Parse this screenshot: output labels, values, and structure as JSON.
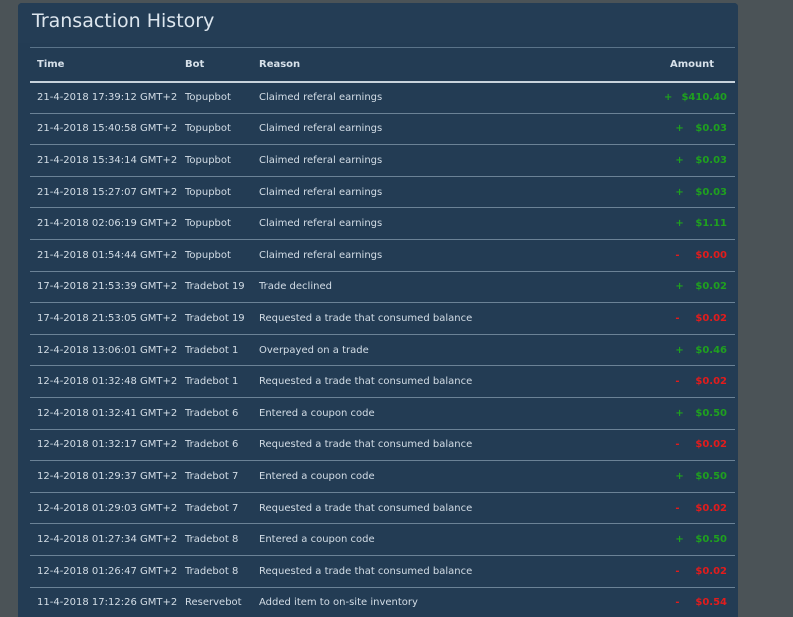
{
  "title": "Transaction History",
  "colors": {
    "positive": "#1fa01f",
    "negative": "#e21c1c"
  },
  "columns": {
    "time": "Time",
    "bot": "Bot",
    "reason": "Reason",
    "amount": "Amount"
  },
  "rows": [
    {
      "time": "21-4-2018 17:39:12 GMT+2",
      "bot": "Topupbot",
      "reason": "Claimed referal earnings",
      "sign": "+",
      "amount": "$410.40",
      "type": "pos"
    },
    {
      "time": "21-4-2018 15:40:58 GMT+2",
      "bot": "Topupbot",
      "reason": "Claimed referal earnings",
      "sign": "+",
      "amount": "$0.03",
      "type": "pos"
    },
    {
      "time": "21-4-2018 15:34:14 GMT+2",
      "bot": "Topupbot",
      "reason": "Claimed referal earnings",
      "sign": "+",
      "amount": "$0.03",
      "type": "pos"
    },
    {
      "time": "21-4-2018 15:27:07 GMT+2",
      "bot": "Topupbot",
      "reason": "Claimed referal earnings",
      "sign": "+",
      "amount": "$0.03",
      "type": "pos"
    },
    {
      "time": "21-4-2018 02:06:19 GMT+2",
      "bot": "Topupbot",
      "reason": "Claimed referal earnings",
      "sign": "+",
      "amount": "$1.11",
      "type": "pos"
    },
    {
      "time": "21-4-2018 01:54:44 GMT+2",
      "bot": "Topupbot",
      "reason": "Claimed referal earnings",
      "sign": "-",
      "amount": "$0.00",
      "type": "neg"
    },
    {
      "time": "17-4-2018 21:53:39 GMT+2",
      "bot": "Tradebot 19",
      "reason": "Trade declined",
      "sign": "+",
      "amount": "$0.02",
      "type": "pos"
    },
    {
      "time": "17-4-2018 21:53:05 GMT+2",
      "bot": "Tradebot 19",
      "reason": "Requested a trade that consumed balance",
      "sign": "-",
      "amount": "$0.02",
      "type": "neg"
    },
    {
      "time": "12-4-2018 13:06:01 GMT+2",
      "bot": "Tradebot 1",
      "reason": "Overpayed on a trade",
      "sign": "+",
      "amount": "$0.46",
      "type": "pos"
    },
    {
      "time": "12-4-2018 01:32:48 GMT+2",
      "bot": "Tradebot 1",
      "reason": "Requested a trade that consumed balance",
      "sign": "-",
      "amount": "$0.02",
      "type": "neg"
    },
    {
      "time": "12-4-2018 01:32:41 GMT+2",
      "bot": "Tradebot 6",
      "reason": "Entered a coupon code",
      "sign": "+",
      "amount": "$0.50",
      "type": "pos"
    },
    {
      "time": "12-4-2018 01:32:17 GMT+2",
      "bot": "Tradebot 6",
      "reason": "Requested a trade that consumed balance",
      "sign": "-",
      "amount": "$0.02",
      "type": "neg"
    },
    {
      "time": "12-4-2018 01:29:37 GMT+2",
      "bot": "Tradebot 7",
      "reason": "Entered a coupon code",
      "sign": "+",
      "amount": "$0.50",
      "type": "pos"
    },
    {
      "time": "12-4-2018 01:29:03 GMT+2",
      "bot": "Tradebot 7",
      "reason": "Requested a trade that consumed balance",
      "sign": "-",
      "amount": "$0.02",
      "type": "neg"
    },
    {
      "time": "12-4-2018 01:27:34 GMT+2",
      "bot": "Tradebot 8",
      "reason": "Entered a coupon code",
      "sign": "+",
      "amount": "$0.50",
      "type": "pos"
    },
    {
      "time": "12-4-2018 01:26:47 GMT+2",
      "bot": "Tradebot 8",
      "reason": "Requested a trade that consumed balance",
      "sign": "-",
      "amount": "$0.02",
      "type": "neg"
    },
    {
      "time": "11-4-2018 17:12:26 GMT+2",
      "bot": "Reservebot",
      "reason": "Added item to on-site inventory",
      "sign": "-",
      "amount": "$0.54",
      "type": "neg"
    }
  ]
}
